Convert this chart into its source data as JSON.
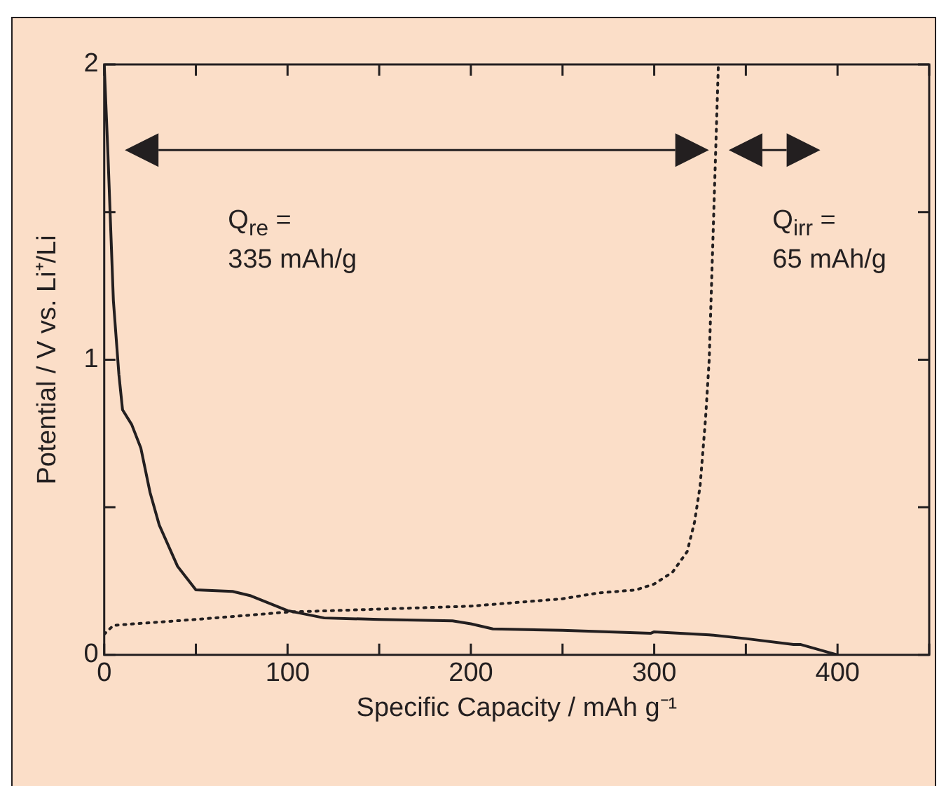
{
  "chart_data": {
    "type": "line",
    "xlabel": "Specific Capacity / mAh g⁻¹",
    "ylabel": "Potential / V vs. Li⁺/Li",
    "xlim": [
      0,
      450
    ],
    "ylim": [
      0,
      2
    ],
    "xticks": [
      0,
      {
        "value": 50,
        "label": null
      },
      100,
      {
        "value": 150,
        "label": null
      },
      200,
      {
        "value": 250,
        "label": null
      },
      300,
      {
        "value": 350,
        "label": null
      },
      400,
      {
        "value": 450,
        "label": null
      }
    ],
    "yticks": [
      0,
      {
        "value": 0.5,
        "label": null
      },
      1,
      {
        "value": 1.5,
        "label": null
      },
      2
    ],
    "grid": false,
    "legend": false,
    "marker": "none",
    "annotations": [
      "Q$_{re}$ =\n335 mAh/g",
      "Q$_{irr}$ =\n65 mAh/g"
    ],
    "series": [
      {
        "color": "#231f20",
        "line_style": "solid",
        "x": [
          0,
          2,
          5,
          8,
          10,
          15,
          20,
          25,
          30,
          40,
          50,
          70,
          80,
          100,
          120,
          150,
          190,
          200,
          212,
          250,
          298,
          300,
          330,
          350,
          376,
          380,
          400
        ],
        "values": [
          2.0,
          1.7,
          1.2,
          0.95,
          0.83,
          0.78,
          0.7,
          0.55,
          0.44,
          0.3,
          0.22,
          0.215,
          0.2,
          0.15,
          0.125,
          0.12,
          0.115,
          0.105,
          0.088,
          0.083,
          0.073,
          0.078,
          0.068,
          0.055,
          0.035,
          0.035,
          0
        ]
      },
      {
        "color": "#231f20",
        "line_style": "dotted",
        "x": [
          0,
          5,
          50,
          100,
          150,
          200,
          250,
          270,
          290,
          300,
          310,
          318,
          322,
          325,
          328,
          330,
          332,
          335
        ],
        "values": [
          0.07,
          0.1,
          0.12,
          0.145,
          0.155,
          0.165,
          0.19,
          0.21,
          0.22,
          0.24,
          0.28,
          0.35,
          0.45,
          0.57,
          0.8,
          1.0,
          1.4,
          2.0
        ]
      }
    ]
  }
}
